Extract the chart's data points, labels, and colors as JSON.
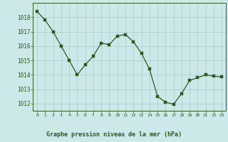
{
  "x": [
    0,
    1,
    2,
    3,
    4,
    5,
    6,
    7,
    8,
    9,
    10,
    11,
    12,
    13,
    14,
    15,
    16,
    17,
    18,
    19,
    20,
    21,
    22,
    23
  ],
  "y": [
    1018.4,
    1017.8,
    1017.0,
    1016.0,
    1015.0,
    1014.0,
    1014.7,
    1015.3,
    1016.2,
    1016.1,
    1016.7,
    1016.8,
    1016.3,
    1015.5,
    1014.4,
    1012.5,
    1012.1,
    1011.95,
    1012.7,
    1013.6,
    1013.8,
    1014.0,
    1013.9,
    1013.85
  ],
  "xlim": [
    -0.5,
    23.5
  ],
  "ylim": [
    1011.5,
    1019.0
  ],
  "yticks": [
    1012,
    1013,
    1014,
    1015,
    1016,
    1017,
    1018
  ],
  "xticks": [
    0,
    1,
    2,
    3,
    4,
    5,
    6,
    7,
    8,
    9,
    10,
    11,
    12,
    13,
    14,
    15,
    16,
    17,
    18,
    19,
    20,
    21,
    22,
    23
  ],
  "line_color": "#2d5a1b",
  "marker_color": "#2d5a1b",
  "bg_color": "#cce8e8",
  "grid_color": "#aacccc",
  "xlabel": "Graphe pression niveau de la mer (hPa)",
  "tick_color": "#2d5a1b",
  "spine_color": "#2d5a1b"
}
